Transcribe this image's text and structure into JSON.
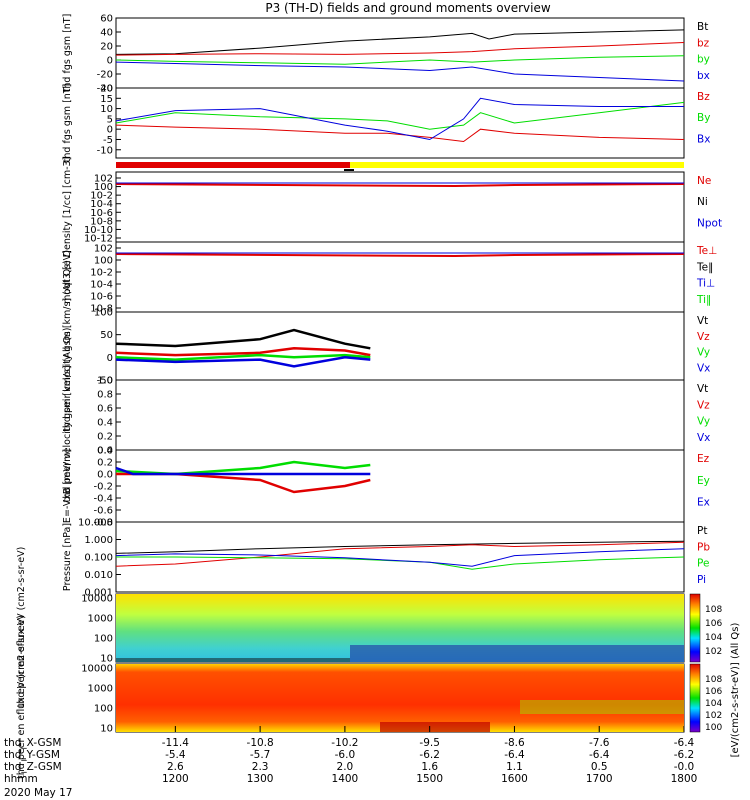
{
  "title": "P3 (TH-D) fields and ground moments overview",
  "date_label": "2020 May 17",
  "time_axis": {
    "ticks": [
      1200,
      1300,
      1400,
      1500,
      1600,
      1700,
      1800
    ],
    "rows": [
      {
        "label": "thd_X-GSM",
        "values": [
          "-11.4",
          "-10.8",
          "-10.2",
          "-9.5",
          "-8.6",
          "-7.6",
          "-6.4"
        ]
      },
      {
        "label": "thd_Y-GSM",
        "values": [
          "-5.4",
          "-5.7",
          "-6.0",
          "-6.2",
          "-6.4",
          "-6.4",
          "-6.2"
        ]
      },
      {
        "label": "thd_Z-GSM",
        "values": [
          "2.6",
          "2.3",
          "2.0",
          "1.6",
          "1.1",
          "0.5",
          "-0.0"
        ]
      },
      {
        "label": "hhmm",
        "values": [
          "1200",
          "1300",
          "1400",
          "1500",
          "1600",
          "1700",
          "1800"
        ]
      }
    ]
  },
  "colorbar": {
    "label": "[eV/(cm2-s-str-eV)] (All Qs)",
    "ticks_top": [
      "10^8",
      "10^6",
      "10^4",
      "10^2"
    ],
    "ticks_bottom": [
      "10^8",
      "10^6",
      "10^4",
      "10^2",
      "10^0"
    ]
  },
  "colors": {
    "black": "#000000",
    "red": "#e00000",
    "green": "#00dd00",
    "blue": "#0000dd",
    "yellow": "#ffff00"
  },
  "chart_data": [
    {
      "type": "line",
      "ylabel": "thd fgs gsm [nT]",
      "ylim": [
        -40,
        60
      ],
      "yticks": [
        "60",
        "40",
        "20",
        "0",
        "-20",
        "-40"
      ],
      "ytick_values": [
        60,
        40,
        20,
        0,
        -20,
        -40
      ],
      "legend": [
        "Bt",
        "bz",
        "by",
        "bx"
      ],
      "series": [
        {
          "name": "Bt",
          "color": "black",
          "x": [
            1130,
            1200,
            1300,
            1400,
            1500,
            1530,
            1550,
            1570,
            1600,
            1700,
            1800
          ],
          "values": [
            8,
            9,
            17,
            27,
            33,
            36,
            38,
            30,
            37,
            40,
            43
          ]
        },
        {
          "name": "bz",
          "color": "red",
          "x": [
            1130,
            1200,
            1300,
            1400,
            1500,
            1550,
            1600,
            1700,
            1800
          ],
          "values": [
            7,
            8,
            9,
            8,
            10,
            12,
            16,
            20,
            25
          ]
        },
        {
          "name": "by",
          "color": "green",
          "x": [
            1130,
            1200,
            1300,
            1400,
            1500,
            1550,
            1600,
            1700,
            1800
          ],
          "values": [
            0,
            -2,
            -4,
            -6,
            0,
            -3,
            0,
            4,
            6
          ]
        },
        {
          "name": "bx",
          "color": "blue",
          "x": [
            1130,
            1200,
            1300,
            1400,
            1500,
            1550,
            1600,
            1700,
            1800
          ],
          "values": [
            -3,
            -5,
            -8,
            -10,
            -15,
            -10,
            -20,
            -25,
            -30
          ]
        }
      ]
    },
    {
      "type": "line",
      "ylabel": "thd fgs gsm [nT]",
      "ylim": [
        -14,
        20
      ],
      "yticks": [
        "20",
        "15",
        "10",
        "5",
        "0",
        "-5",
        "-10"
      ],
      "ytick_values": [
        20,
        15,
        10,
        5,
        0,
        -5,
        -10
      ],
      "legend": [
        "Bz",
        "By",
        "Bx"
      ],
      "series": [
        {
          "name": "Bz",
          "color": "red",
          "x": [
            1130,
            1200,
            1300,
            1400,
            1450,
            1500,
            1540,
            1560,
            1600,
            1700,
            1800
          ],
          "values": [
            2,
            1,
            0,
            -2,
            -2,
            -4,
            -6,
            0,
            -2,
            -4,
            -5
          ]
        },
        {
          "name": "By",
          "color": "green",
          "x": [
            1130,
            1200,
            1300,
            1400,
            1450,
            1500,
            1540,
            1560,
            1600,
            1700,
            1800
          ],
          "values": [
            3,
            8,
            6,
            5,
            4,
            0,
            2,
            8,
            3,
            8,
            13
          ]
        },
        {
          "name": "Bx",
          "color": "blue",
          "x": [
            1130,
            1200,
            1300,
            1400,
            1450,
            1500,
            1540,
            1560,
            1600,
            1700,
            1800
          ],
          "values": [
            4,
            9,
            10,
            2,
            -1,
            -5,
            5,
            15,
            12,
            11,
            11
          ]
        }
      ]
    },
    {
      "type": "line",
      "ylabel": "Density [1/cc] [cm-3]",
      "yscale": "log",
      "yticks": [
        "10^2",
        "10^0",
        "10^-2",
        "10^-4",
        "10^-6",
        "10^-8",
        "10^-10",
        "10^-12"
      ],
      "legend": [
        "Ne",
        "Ni",
        "Npot"
      ]
    },
    {
      "type": "line",
      "ylabel": "moqt3 [eV]",
      "yscale": "log",
      "yticks": [
        "10^2",
        "10^0",
        "10^-2",
        "10^-4",
        "10^-6",
        "10^-8"
      ],
      "legend": [
        "Te⊥",
        "Te‖",
        "Ti⊥",
        "Ti‖"
      ]
    },
    {
      "type": "line",
      "ylabel": "thd peir velocity gsm [km/s] (All Qs)",
      "ylim": [
        -50,
        100
      ],
      "yticks": [
        "100",
        "50",
        "0",
        "-50"
      ],
      "ytick_values": [
        100,
        50,
        0,
        -50
      ],
      "legend": [
        "Vt",
        "Vz",
        "Vy",
        "Vx"
      ],
      "series": [
        {
          "name": "Vt",
          "color": "black",
          "x": [
            1130,
            1200,
            1300,
            1340,
            1400,
            1430
          ],
          "values": [
            30,
            25,
            40,
            60,
            30,
            20
          ]
        },
        {
          "name": "Vz",
          "color": "red",
          "x": [
            1130,
            1200,
            1300,
            1340,
            1400,
            1430
          ],
          "values": [
            10,
            5,
            10,
            20,
            15,
            5
          ]
        },
        {
          "name": "Vy",
          "color": "green",
          "x": [
            1130,
            1200,
            1300,
            1340,
            1400,
            1430
          ],
          "values": [
            0,
            -5,
            5,
            0,
            5,
            0
          ]
        },
        {
          "name": "Vx",
          "color": "blue",
          "x": [
            1130,
            1200,
            1300,
            1340,
            1400,
            1430
          ],
          "values": [
            -5,
            -10,
            -5,
            -20,
            0,
            -5
          ]
        }
      ]
    },
    {
      "type": "line",
      "ylabel": "thd peer velocity gsm [km/s] (All Qs)",
      "ylim": [
        0,
        1
      ],
      "yticks": [
        "1.0",
        "0.8",
        "0.6",
        "0.4",
        "0.2",
        "0.0"
      ],
      "ytick_values": [
        1.0,
        0.8,
        0.6,
        0.4,
        0.2,
        0.0
      ],
      "legend": [
        "Vt",
        "Vz",
        "Vy",
        "Vx"
      ]
    },
    {
      "type": "line",
      "ylabel": "E=-VxB [mV/m]",
      "ylim": [
        -0.8,
        0.4
      ],
      "yticks": [
        "0.4",
        "0.2",
        "0.0",
        "-0.2",
        "-0.4",
        "-0.6",
        "-0.8"
      ],
      "ytick_values": [
        0.4,
        0.2,
        0.0,
        -0.2,
        -0.4,
        -0.6,
        -0.8
      ],
      "legend": [
        "Ez",
        "Ey",
        "Ex"
      ],
      "series": [
        {
          "name": "Ez",
          "color": "red",
          "x": [
            1130,
            1200,
            1300,
            1340,
            1400,
            1430
          ],
          "values": [
            0.0,
            0.0,
            -0.1,
            -0.3,
            -0.2,
            -0.1
          ]
        },
        {
          "name": "Ey",
          "color": "green",
          "x": [
            1130,
            1200,
            1300,
            1340,
            1400,
            1430
          ],
          "values": [
            0.05,
            0.0,
            0.1,
            0.2,
            0.1,
            0.15
          ]
        },
        {
          "name": "Ex",
          "color": "blue",
          "x": [
            1130,
            1150,
            1200,
            1300,
            1400,
            1430
          ],
          "values": [
            0.1,
            0.0,
            0.0,
            0.0,
            0.0,
            0.0
          ]
        }
      ]
    },
    {
      "type": "line",
      "ylabel": "Pressure [nPa]",
      "yscale": "log",
      "ylim": [
        0.001,
        10
      ],
      "yticks": [
        "10.000",
        "1.000",
        "0.100",
        "0.010",
        "0.001"
      ],
      "ytick_values": [
        10,
        1,
        0.1,
        0.01,
        0.001
      ],
      "legend": [
        "Pt",
        "Pb",
        "Pe",
        "Pi"
      ],
      "series": [
        {
          "name": "Pt",
          "color": "black",
          "x": [
            1130,
            1200,
            1300,
            1400,
            1500,
            1600,
            1700,
            1800
          ],
          "values": [
            0.16,
            0.2,
            0.3,
            0.4,
            0.5,
            0.6,
            0.7,
            0.8
          ]
        },
        {
          "name": "Pb",
          "color": "red",
          "x": [
            1130,
            1200,
            1300,
            1400,
            1500,
            1550,
            1600,
            1700,
            1800
          ],
          "values": [
            0.03,
            0.04,
            0.1,
            0.3,
            0.4,
            0.5,
            0.4,
            0.5,
            0.7
          ]
        },
        {
          "name": "Pe",
          "color": "green",
          "x": [
            1130,
            1200,
            1300,
            1400,
            1500,
            1550,
            1600,
            1700,
            1800
          ],
          "values": [
            0.1,
            0.1,
            0.09,
            0.08,
            0.05,
            0.02,
            0.04,
            0.07,
            0.1
          ]
        },
        {
          "name": "Pi",
          "color": "blue",
          "x": [
            1130,
            1200,
            1300,
            1400,
            1500,
            1550,
            1600,
            1700,
            1800
          ],
          "values": [
            0.12,
            0.15,
            0.13,
            0.09,
            0.05,
            0.03,
            0.12,
            0.2,
            0.3
          ]
        }
      ]
    },
    {
      "type": "heatmap",
      "ylabel": "thd peir en eflux eV (cm2-s-sr-eV)",
      "yscale": "log",
      "yticks": [
        "10000",
        "1000",
        "100",
        "10"
      ]
    },
    {
      "type": "heatmap",
      "ylabel": "thd peer en eflux eV (cm2-s-sr-eV)",
      "yscale": "log",
      "yticks": [
        "10000",
        "1000",
        "100",
        "10"
      ]
    }
  ]
}
